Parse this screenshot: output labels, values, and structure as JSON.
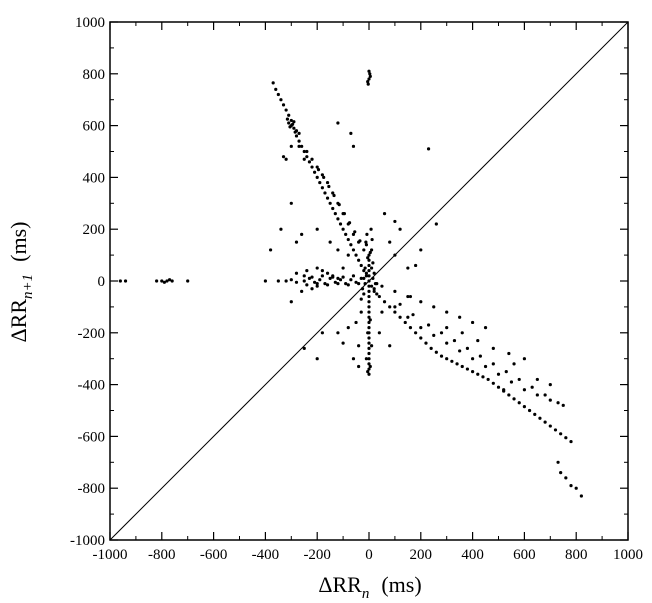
{
  "chart_data": {
    "type": "scatter",
    "title": "",
    "xlabel": {
      "main": "ΔRR",
      "sub": "n",
      "unit": "(ms)"
    },
    "ylabel": {
      "main": "ΔRR",
      "sub": "n+1",
      "unit": "(ms)"
    },
    "xlim": [
      -1000,
      1000
    ],
    "ylim": [
      -1000,
      1000
    ],
    "x_ticks": [
      "-1000",
      "-800",
      "-600",
      "-400",
      "-200",
      "0",
      "200",
      "400",
      "600",
      "800",
      "1000"
    ],
    "y_ticks": [
      "-1000",
      "-800",
      "-600",
      "-400",
      "-200",
      "0",
      "200",
      "400",
      "600",
      "800",
      "1000"
    ],
    "x_tick_values": [
      -1000,
      -800,
      -600,
      -400,
      -200,
      0,
      200,
      400,
      600,
      800,
      1000
    ],
    "y_tick_values": [
      -1000,
      -800,
      -600,
      -400,
      -200,
      0,
      200,
      400,
      600,
      800,
      1000
    ],
    "identity_line": {
      "from": [
        -1000,
        -1000
      ],
      "to": [
        1000,
        1000
      ]
    },
    "grid": false,
    "marker_color": "#000000",
    "series": [
      {
        "points": [
          [
            -370,
            765
          ],
          [
            -360,
            740
          ],
          [
            -350,
            720
          ],
          [
            -340,
            700
          ],
          [
            -330,
            680
          ],
          [
            -320,
            660
          ],
          [
            -310,
            640
          ],
          [
            -300,
            620
          ],
          [
            -295,
            605
          ],
          [
            -290,
            590
          ],
          [
            -285,
            575
          ],
          [
            -280,
            560
          ],
          [
            -270,
            540
          ],
          [
            -260,
            520
          ],
          [
            -250,
            500
          ],
          [
            -240,
            480
          ],
          [
            -230,
            460
          ],
          [
            -220,
            440
          ],
          [
            -210,
            420
          ],
          [
            -200,
            400
          ],
          [
            -190,
            380
          ],
          [
            -180,
            360
          ],
          [
            -170,
            340
          ],
          [
            -160,
            320
          ],
          [
            -150,
            300
          ],
          [
            -140,
            280
          ],
          [
            -130,
            260
          ],
          [
            -120,
            240
          ],
          [
            -110,
            220
          ],
          [
            -100,
            200
          ],
          [
            -90,
            180
          ],
          [
            -80,
            160
          ],
          [
            -70,
            140
          ],
          [
            -60,
            120
          ],
          [
            -50,
            100
          ],
          [
            -40,
            80
          ],
          [
            -30,
            60
          ],
          [
            -20,
            40
          ],
          [
            -10,
            20
          ],
          [
            -300,
            600
          ],
          [
            -310,
            610
          ],
          [
            -290,
            615
          ],
          [
            -305,
            595
          ],
          [
            -315,
            625
          ],
          [
            -280,
            580
          ],
          [
            -270,
            570
          ],
          [
            -330,
            480
          ],
          [
            -320,
            470
          ],
          [
            -300,
            520
          ],
          [
            -250,
            470
          ],
          [
            -200,
            440
          ],
          [
            -180,
            410
          ],
          [
            -160,
            380
          ],
          [
            -140,
            340
          ],
          [
            -120,
            300
          ],
          [
            -100,
            260
          ],
          [
            -80,
            220
          ],
          [
            -60,
            180
          ],
          [
            -40,
            150
          ],
          [
            -20,
            120
          ],
          [
            -270,
            520
          ],
          [
            -240,
            500
          ],
          [
            -220,
            470
          ],
          [
            -195,
            430
          ],
          [
            -175,
            400
          ],
          [
            -155,
            365
          ],
          [
            -135,
            330
          ],
          [
            -115,
            295
          ],
          [
            -95,
            260
          ],
          [
            -75,
            225
          ],
          [
            -55,
            190
          ],
          [
            -35,
            155
          ],
          [
            10,
            -20
          ],
          [
            20,
            -40
          ],
          [
            40,
            -60
          ],
          [
            60,
            -80
          ],
          [
            80,
            -100
          ],
          [
            100,
            -120
          ],
          [
            120,
            -140
          ],
          [
            140,
            -160
          ],
          [
            160,
            -180
          ],
          [
            180,
            -200
          ],
          [
            200,
            -220
          ],
          [
            220,
            -240
          ],
          [
            240,
            -260
          ],
          [
            260,
            -275
          ],
          [
            280,
            -290
          ],
          [
            300,
            -300
          ],
          [
            320,
            -310
          ],
          [
            340,
            -320
          ],
          [
            360,
            -330
          ],
          [
            380,
            -340
          ],
          [
            400,
            -350
          ],
          [
            420,
            -360
          ],
          [
            440,
            -370
          ],
          [
            460,
            -380
          ],
          [
            480,
            -395
          ],
          [
            500,
            -410
          ],
          [
            520,
            -425
          ],
          [
            540,
            -440
          ],
          [
            560,
            -455
          ],
          [
            580,
            -470
          ],
          [
            600,
            -485
          ],
          [
            620,
            -500
          ],
          [
            640,
            -515
          ],
          [
            660,
            -530
          ],
          [
            680,
            -545
          ],
          [
            700,
            -560
          ],
          [
            720,
            -575
          ],
          [
            740,
            -590
          ],
          [
            760,
            -605
          ],
          [
            780,
            -620
          ],
          [
            100,
            -100
          ],
          [
            150,
            -140
          ],
          [
            200,
            -180
          ],
          [
            250,
            -210
          ],
          [
            300,
            -240
          ],
          [
            350,
            -270
          ],
          [
            400,
            -300
          ],
          [
            450,
            -330
          ],
          [
            500,
            -360
          ],
          [
            550,
            -390
          ],
          [
            600,
            -420
          ],
          [
            650,
            -440
          ],
          [
            700,
            -460
          ],
          [
            750,
            -480
          ],
          [
            120,
            -90
          ],
          [
            170,
            -130
          ],
          [
            230,
            -170
          ],
          [
            280,
            -200
          ],
          [
            330,
            -230
          ],
          [
            380,
            -260
          ],
          [
            430,
            -290
          ],
          [
            480,
            -320
          ],
          [
            530,
            -350
          ],
          [
            580,
            -380
          ],
          [
            630,
            -410
          ],
          [
            680,
            -440
          ],
          [
            730,
            -470
          ],
          [
            -250,
            0
          ],
          [
            -230,
            10
          ],
          [
            -210,
            -5
          ],
          [
            -190,
            5
          ],
          [
            -170,
            -10
          ],
          [
            -150,
            10
          ],
          [
            -130,
            -5
          ],
          [
            -110,
            5
          ],
          [
            -90,
            -10
          ],
          [
            -70,
            5
          ],
          [
            -50,
            -5
          ],
          [
            -30,
            10
          ],
          [
            -250,
            20
          ],
          [
            -240,
            -15
          ],
          [
            -220,
            15
          ],
          [
            -200,
            -10
          ],
          [
            -180,
            20
          ],
          [
            -160,
            -15
          ],
          [
            -140,
            15
          ],
          [
            -120,
            -10
          ],
          [
            -100,
            15
          ],
          [
            -80,
            -15
          ],
          [
            -60,
            20
          ],
          [
            -40,
            -10
          ],
          [
            -300,
            5
          ],
          [
            -280,
            -5
          ],
          [
            -320,
            0
          ],
          [
            -350,
            0
          ],
          [
            -400,
            0
          ],
          [
            0,
            100
          ],
          [
            0,
            80
          ],
          [
            0,
            60
          ],
          [
            0,
            40
          ],
          [
            0,
            20
          ],
          [
            0,
            0
          ],
          [
            0,
            -20
          ],
          [
            0,
            -40
          ],
          [
            0,
            -60
          ],
          [
            0,
            -80
          ],
          [
            0,
            -100
          ],
          [
            0,
            -120
          ],
          [
            0,
            -140
          ],
          [
            0,
            -160
          ],
          [
            0,
            -180
          ],
          [
            0,
            -200
          ],
          [
            0,
            -220
          ],
          [
            0,
            -240
          ],
          [
            0,
            -260
          ],
          [
            0,
            -280
          ],
          [
            0,
            -300
          ],
          [
            0,
            -320
          ],
          [
            0,
            -340
          ],
          [
            0,
            -360
          ],
          [
            5,
            -150
          ],
          [
            -5,
            -200
          ],
          [
            10,
            -250
          ],
          [
            -10,
            -300
          ],
          [
            5,
            -330
          ],
          [
            -5,
            -350
          ],
          [
            10,
            120
          ],
          [
            -10,
            140
          ],
          [
            5,
            110
          ],
          [
            -5,
            90
          ],
          [
            15,
            70
          ],
          [
            -15,
            50
          ],
          [
            20,
            30
          ],
          [
            -20,
            10
          ],
          [
            25,
            -10
          ],
          [
            -25,
            -30
          ],
          [
            30,
            -50
          ],
          [
            -30,
            -70
          ],
          [
            10,
            50
          ],
          [
            -10,
            30
          ],
          [
            15,
            10
          ],
          [
            -15,
            -10
          ],
          [
            20,
            -30
          ],
          [
            -20,
            -50
          ],
          [
            8,
            200
          ],
          [
            -8,
            180
          ],
          [
            12,
            160
          ],
          [
            -12,
            150
          ],
          [
            0,
            780
          ],
          [
            -5,
            770
          ],
          [
            5,
            790
          ],
          [
            0,
            810
          ],
          [
            -3,
            760
          ],
          [
            3,
            800
          ],
          [
            -780,
            0
          ],
          [
            -770,
            5
          ],
          [
            -790,
            -5
          ],
          [
            -760,
            0
          ],
          [
            -800,
            0
          ],
          [
            -820,
            0
          ],
          [
            -700,
            0
          ],
          [
            -960,
            0
          ],
          [
            -940,
            0
          ],
          [
            740,
            -740
          ],
          [
            760,
            -760
          ],
          [
            780,
            -790
          ],
          [
            800,
            -800
          ],
          [
            820,
            -830
          ],
          [
            730,
            -700
          ],
          [
            -120,
            610
          ],
          [
            -70,
            570
          ],
          [
            -60,
            520
          ],
          [
            230,
            510
          ],
          [
            100,
            100
          ],
          [
            150,
            50
          ],
          [
            80,
            150
          ],
          [
            -80,
            100
          ],
          [
            -100,
            50
          ],
          [
            -250,
            -260
          ],
          [
            -200,
            -300
          ],
          [
            -180,
            -200
          ],
          [
            -60,
            -300
          ],
          [
            -40,
            -330
          ],
          [
            -100,
            -240
          ],
          [
            -120,
            -200
          ],
          [
            -200,
            200
          ],
          [
            -280,
            150
          ],
          [
            -300,
            300
          ],
          [
            -260,
            180
          ],
          [
            -340,
            200
          ],
          [
            -380,
            120
          ],
          [
            -120,
            120
          ],
          [
            -150,
            150
          ],
          [
            260,
            220
          ],
          [
            200,
            120
          ],
          [
            120,
            200
          ],
          [
            60,
            260
          ],
          [
            100,
            230
          ],
          [
            180,
            60
          ],
          [
            160,
            -60
          ],
          [
            50,
            -120
          ],
          [
            -30,
            -120
          ],
          [
            -50,
            -160
          ],
          [
            -80,
            -180
          ],
          [
            40,
            -200
          ],
          [
            80,
            -250
          ],
          [
            -40,
            -250
          ],
          [
            600,
            -300
          ],
          [
            540,
            -280
          ],
          [
            480,
            -260
          ],
          [
            420,
            -230
          ],
          [
            360,
            -200
          ],
          [
            300,
            -180
          ],
          [
            520,
            -420
          ],
          [
            700,
            -400
          ],
          [
            650,
            -380
          ],
          [
            560,
            -320
          ],
          [
            250,
            -100
          ],
          [
            300,
            -120
          ],
          [
            350,
            -140
          ],
          [
            400,
            -160
          ],
          [
            450,
            -180
          ],
          [
            200,
            -80
          ],
          [
            150,
            -60
          ],
          [
            100,
            -40
          ],
          [
            50,
            -20
          ],
          [
            30,
            -10
          ],
          [
            -200,
            50
          ],
          [
            -180,
            40
          ],
          [
            -160,
            30
          ],
          [
            -140,
            20
          ],
          [
            -120,
            10
          ],
          [
            -300,
            -80
          ],
          [
            -260,
            -40
          ],
          [
            -220,
            -30
          ],
          [
            -200,
            -20
          ],
          [
            -240,
            40
          ],
          [
            -280,
            30
          ]
        ]
      }
    ]
  }
}
